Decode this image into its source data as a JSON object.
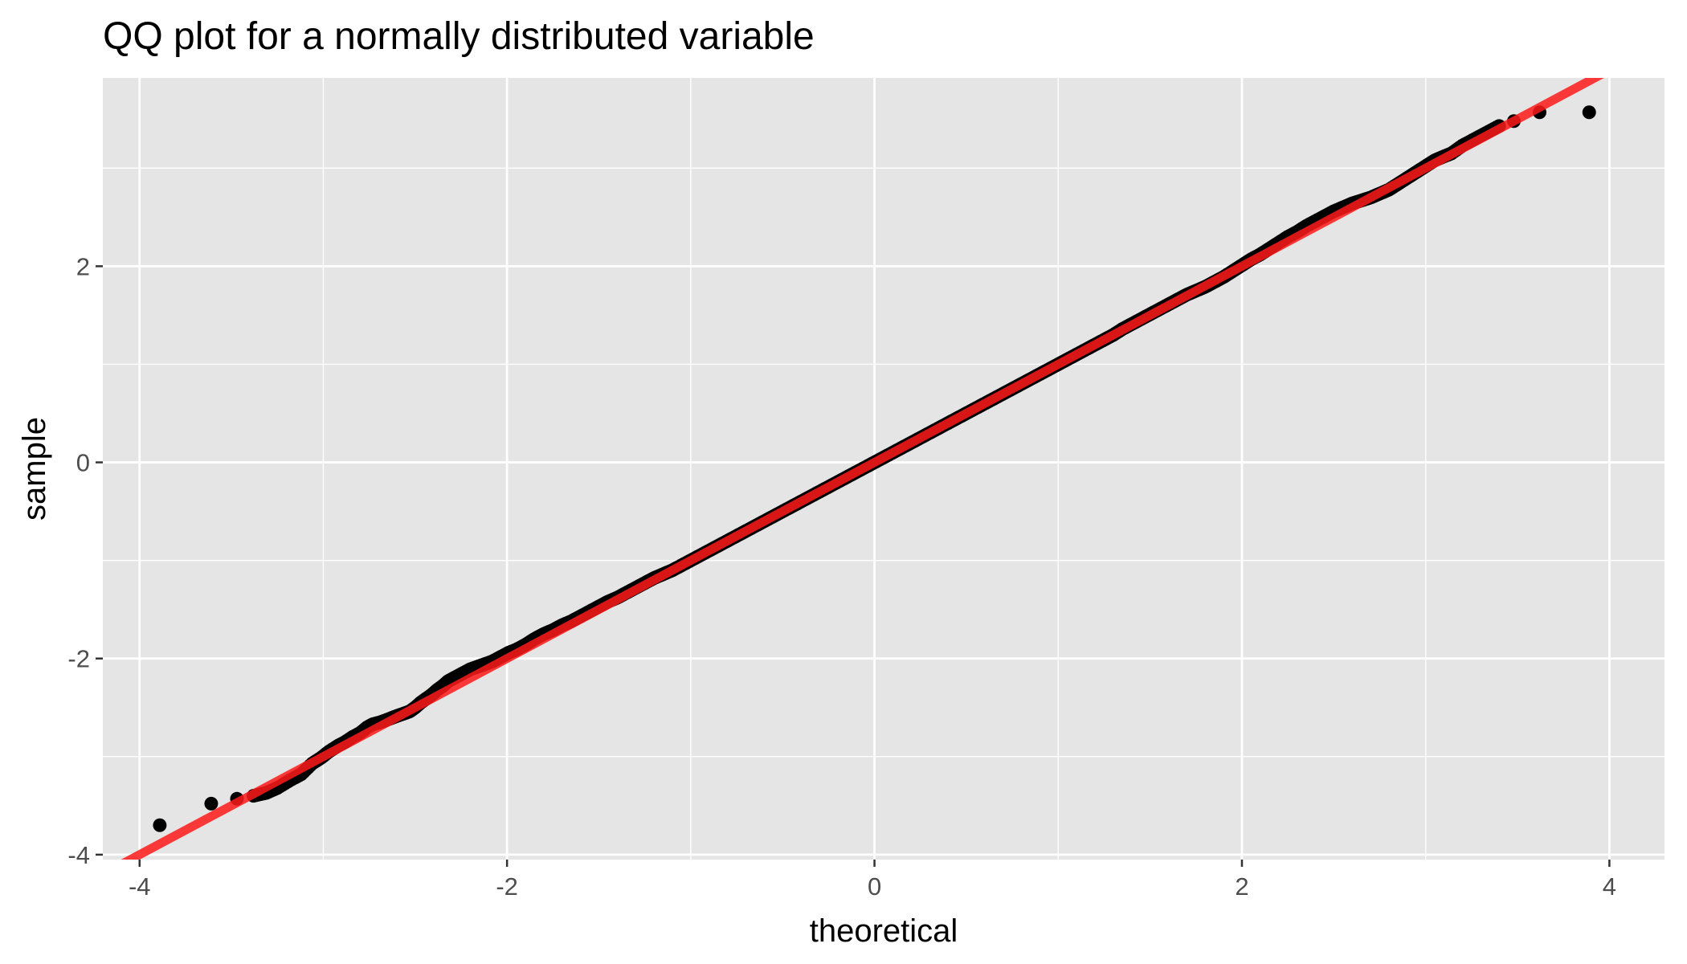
{
  "chart_data": {
    "type": "scatter",
    "title": "QQ plot for a normally distributed variable",
    "xlabel": "theoretical",
    "ylabel": "sample",
    "xlim": [
      -4.2,
      4.3
    ],
    "ylim": [
      -4.05,
      3.92
    ],
    "x_ticks": [
      -4,
      -2,
      0,
      2,
      4
    ],
    "y_ticks": [
      -4,
      -2,
      0,
      2
    ],
    "grid": true,
    "legend": "none",
    "panel_background": "#e5e5e5",
    "grid_color": "#ffffff",
    "point_color": "#000000",
    "line_color": "#ff1a1a",
    "reference_line": {
      "intercept": 0,
      "slope": 1.0,
      "x_range": [
        -4.2,
        4.3
      ]
    },
    "series": [
      {
        "x": [
          -3.89,
          -3.61,
          -3.47,
          -3.38,
          -3.31,
          -3.25,
          -3.18,
          -3.12,
          -3.06,
          -3.01,
          -2.97,
          -2.92,
          -2.88,
          -2.84,
          -2.8,
          -2.76,
          -2.73,
          -2.69,
          -2.66,
          -2.62,
          -2.59,
          -2.56,
          -2.53,
          -2.5,
          -2.47,
          -2.44,
          -2.41,
          -2.38,
          -2.35,
          -2.32,
          -2.29,
          -2.26,
          -2.23,
          -2.2,
          -2.17,
          -2.14,
          -2.11,
          -2.08,
          -2.05,
          -2.02,
          -1.99,
          -1.95,
          -1.9,
          -1.85,
          -1.8,
          -1.75,
          -1.7,
          -1.65,
          -1.6,
          -1.55,
          -1.5,
          -1.45,
          -1.4,
          -1.35,
          -1.3,
          -1.25,
          -1.2,
          -1.15,
          -1.1,
          -1.05,
          -1.0,
          -0.95,
          -0.9,
          -0.85,
          -0.8,
          -0.75,
          -0.7,
          -0.65,
          -0.6,
          -0.55,
          -0.5,
          -0.45,
          -0.4,
          -0.35,
          -0.3,
          -0.25,
          -0.2,
          -0.15,
          -0.1,
          -0.05,
          0.0,
          0.05,
          0.1,
          0.15,
          0.2,
          0.25,
          0.3,
          0.35,
          0.4,
          0.45,
          0.5,
          0.55,
          0.6,
          0.65,
          0.7,
          0.75,
          0.8,
          0.85,
          0.9,
          0.95,
          1.0,
          1.05,
          1.1,
          1.15,
          1.2,
          1.25,
          1.3,
          1.35,
          1.4,
          1.45,
          1.5,
          1.55,
          1.6,
          1.65,
          1.7,
          1.75,
          1.8,
          1.85,
          1.9,
          1.95,
          2.0,
          2.05,
          2.1,
          2.15,
          2.2,
          2.25,
          2.3,
          2.35,
          2.4,
          2.45,
          2.5,
          2.55,
          2.6,
          2.65,
          2.7,
          2.75,
          2.8,
          2.85,
          2.9,
          2.95,
          3.0,
          3.05,
          3.1,
          3.14,
          3.2,
          3.27,
          3.33,
          3.4,
          3.48,
          3.62,
          3.89
        ],
        "y": [
          -3.7,
          -3.48,
          -3.43,
          -3.4,
          -3.37,
          -3.32,
          -3.24,
          -3.18,
          -3.07,
          -3.01,
          -2.95,
          -2.89,
          -2.85,
          -2.8,
          -2.76,
          -2.7,
          -2.67,
          -2.65,
          -2.63,
          -2.6,
          -2.58,
          -2.56,
          -2.54,
          -2.5,
          -2.45,
          -2.41,
          -2.37,
          -2.32,
          -2.28,
          -2.23,
          -2.2,
          -2.17,
          -2.14,
          -2.11,
          -2.09,
          -2.07,
          -2.05,
          -2.03,
          -2.0,
          -1.97,
          -1.94,
          -1.91,
          -1.86,
          -1.8,
          -1.75,
          -1.71,
          -1.66,
          -1.62,
          -1.57,
          -1.52,
          -1.47,
          -1.42,
          -1.38,
          -1.33,
          -1.28,
          -1.23,
          -1.18,
          -1.14,
          -1.1,
          -1.05,
          -1.0,
          -0.95,
          -0.9,
          -0.85,
          -0.8,
          -0.75,
          -0.7,
          -0.65,
          -0.6,
          -0.55,
          -0.5,
          -0.45,
          -0.4,
          -0.35,
          -0.3,
          -0.25,
          -0.2,
          -0.15,
          -0.1,
          -0.05,
          0.0,
          0.05,
          0.1,
          0.15,
          0.2,
          0.25,
          0.3,
          0.35,
          0.4,
          0.45,
          0.5,
          0.55,
          0.6,
          0.65,
          0.7,
          0.75,
          0.8,
          0.85,
          0.9,
          0.95,
          1.0,
          1.05,
          1.1,
          1.15,
          1.2,
          1.25,
          1.3,
          1.36,
          1.41,
          1.46,
          1.51,
          1.56,
          1.61,
          1.66,
          1.71,
          1.75,
          1.79,
          1.84,
          1.89,
          1.95,
          2.01,
          2.07,
          2.12,
          2.18,
          2.24,
          2.3,
          2.35,
          2.41,
          2.46,
          2.51,
          2.56,
          2.6,
          2.64,
          2.67,
          2.7,
          2.74,
          2.78,
          2.84,
          2.9,
          2.96,
          3.02,
          3.08,
          3.12,
          3.15,
          3.23,
          3.3,
          3.36,
          3.43,
          3.48,
          3.57,
          3.57
        ]
      }
    ]
  }
}
